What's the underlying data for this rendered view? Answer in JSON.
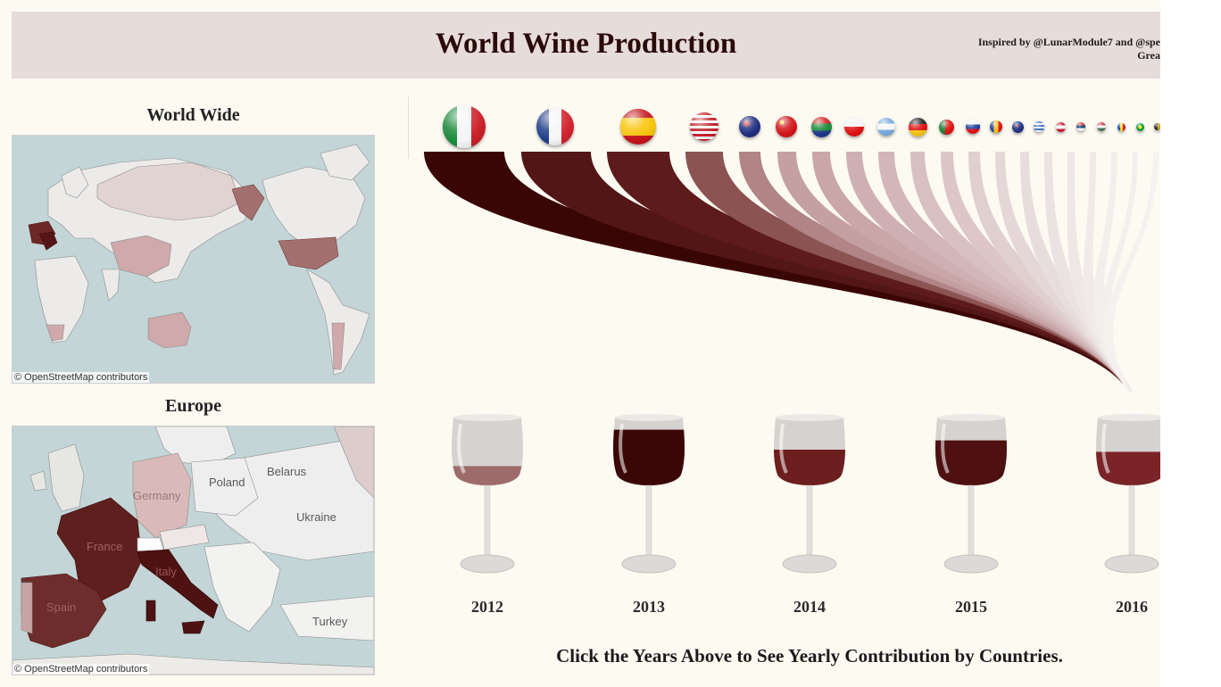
{
  "header": {
    "title": "World Wine Production",
    "credit_line1": "Inspired by @LunarModule7 and @spe",
    "credit_line2": "Grea"
  },
  "maps": {
    "world_title": "World Wide",
    "europe_title": "Europe",
    "attribution": "© OpenStreetMap contributors",
    "europe_labels": [
      "Poland",
      "Belarus",
      "Germany",
      "Ukraine",
      "France",
      "Italy",
      "Spain",
      "Turkey"
    ]
  },
  "flags": [
    {
      "country": "Italy",
      "icon": "italy-flag-icon"
    },
    {
      "country": "France",
      "icon": "france-flag-icon"
    },
    {
      "country": "Spain",
      "icon": "spain-flag-icon"
    },
    {
      "country": "United States",
      "icon": "usa-flag-icon"
    },
    {
      "country": "Australia",
      "icon": "australia-flag-icon"
    },
    {
      "country": "China",
      "icon": "china-flag-icon"
    },
    {
      "country": "South Africa",
      "icon": "south-africa-flag-icon"
    },
    {
      "country": "Chile",
      "icon": "chile-flag-icon"
    },
    {
      "country": "Argentina",
      "icon": "argentina-flag-icon"
    },
    {
      "country": "Germany",
      "icon": "germany-flag-icon"
    },
    {
      "country": "Portugal",
      "icon": "portugal-flag-icon"
    },
    {
      "country": "Russia",
      "icon": "russia-flag-icon"
    },
    {
      "country": "Romania",
      "icon": "romania-flag-icon"
    },
    {
      "country": "New Zealand",
      "icon": "new-zealand-flag-icon"
    },
    {
      "country": "Greece",
      "icon": "greece-flag-icon"
    },
    {
      "country": "Austria",
      "icon": "austria-flag-icon"
    },
    {
      "country": "Serbia",
      "icon": "serbia-flag-icon"
    },
    {
      "country": "Hungary",
      "icon": "hungary-flag-icon"
    },
    {
      "country": "Moldova",
      "icon": "moldova-flag-icon"
    },
    {
      "country": "Brazil",
      "icon": "brazil-flag-icon"
    },
    {
      "country": "Other",
      "icon": "flag-icon"
    }
  ],
  "years": [
    {
      "label": "2012",
      "fill_level": 0.32,
      "wine_color": "#9e6b6b"
    },
    {
      "label": "2013",
      "fill_level": 0.83,
      "wine_color": "#3a0606"
    },
    {
      "label": "2014",
      "fill_level": 0.55,
      "wine_color": "#6d1e1e"
    },
    {
      "label": "2015",
      "fill_level": 0.68,
      "wine_color": "#4e1010"
    },
    {
      "label": "2016",
      "fill_level": 0.52,
      "wine_color": "#7a2428"
    }
  ],
  "instruction": "Click the Years Above to See Yearly Contribution by Countries.",
  "colors": {
    "dark_wine": "#3a0505",
    "medium_wine": "#5e1717",
    "light_wine": "#cfa9ab",
    "background": "#fdfaf2"
  }
}
